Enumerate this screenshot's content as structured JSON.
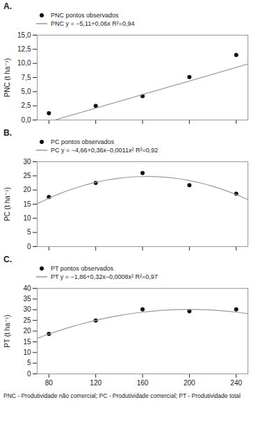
{
  "chart_data": [
    {
      "type": "scatter",
      "title": "A.",
      "ylabel": "PNC (t ha⁻¹)",
      "xlim": [
        70,
        250
      ],
      "xticks": [
        80,
        120,
        160,
        200,
        240
      ],
      "ylim": [
        0,
        15
      ],
      "yticks": [
        {
          "value": 0.0,
          "label": "0,0"
        },
        {
          "value": 2.5,
          "label": "2,5"
        },
        {
          "value": 5.0,
          "label": "5,0"
        },
        {
          "value": 7.5,
          "label": "7,5"
        },
        {
          "value": 10.0,
          "label": "10,0"
        },
        {
          "value": 12.5,
          "label": "12,5"
        },
        {
          "value": 15.0,
          "label": "15,0"
        }
      ],
      "tick_labels": "y",
      "grid": false,
      "legend": "top",
      "series": [
        {
          "name": "PNC  pontos observados",
          "type": "scatter",
          "color": "#111111",
          "x": [
            80,
            120,
            160,
            200,
            240
          ],
          "values": [
            1.2,
            2.5,
            4.2,
            7.6,
            11.5
          ]
        },
        {
          "name": "PNC  y = −5,11+0,06x  R²=0,94",
          "type": "line",
          "color": "#999999",
          "x": [
            86,
            250
          ],
          "values": [
            0.05,
            9.89
          ]
        }
      ]
    },
    {
      "type": "scatter",
      "title": "B.",
      "ylabel": "PC (t ha⁻¹)",
      "xlim": [
        70,
        250
      ],
      "xticks": [
        80,
        120,
        160,
        200,
        240
      ],
      "ylim": [
        0,
        30
      ],
      "yticks": [
        0,
        5,
        10,
        15,
        20,
        25,
        30
      ],
      "tick_labels": "y",
      "grid": false,
      "legend": "top",
      "series": [
        {
          "name": "PC  pontos observados",
          "type": "scatter",
          "color": "#111111",
          "x": [
            80,
            120,
            160,
            200,
            240
          ],
          "values": [
            17.5,
            22.5,
            26.0,
            21.7,
            18.7
          ]
        },
        {
          "name": "PC  y = −4,66+0,36x−0,0011x²  R²=0,92",
          "type": "line",
          "color": "#999999",
          "x": [
            70,
            80,
            90,
            100,
            110,
            120,
            130,
            140,
            150,
            160,
            170,
            180,
            190,
            200,
            210,
            220,
            230,
            240,
            250
          ],
          "values": [
            15.15,
            17.1,
            18.83,
            20.34,
            21.63,
            22.7,
            23.55,
            24.18,
            24.59,
            24.78,
            24.75,
            24.5,
            24.03,
            23.34,
            22.43,
            21.3,
            19.95,
            18.38,
            16.59
          ]
        }
      ]
    },
    {
      "type": "scatter",
      "title": "C.",
      "ylabel": "PT (t ha⁻¹)",
      "xlim": [
        70,
        250
      ],
      "xticks": [
        80,
        120,
        160,
        200,
        240
      ],
      "ylim": [
        0,
        40
      ],
      "yticks": [
        0,
        5,
        10,
        15,
        20,
        25,
        30,
        35,
        40
      ],
      "grid": false,
      "legend": "top",
      "caption": "PNC - Produtividade não comercial; PC - Produtividade comercial; PT - Produtividade total",
      "series": [
        {
          "name": "PT  pontos observados",
          "type": "scatter",
          "color": "#111111",
          "x": [
            80,
            120,
            160,
            200,
            240
          ],
          "values": [
            18.7,
            25.0,
            30.2,
            29.3,
            30.2
          ]
        },
        {
          "name": "PT  y = −1,86+0,32x−0,0008x²  R²=0,97",
          "type": "line",
          "color": "#999999",
          "x": [
            70,
            80,
            90,
            100,
            110,
            120,
            130,
            140,
            150,
            160,
            170,
            180,
            190,
            200,
            210,
            220,
            230,
            240,
            250
          ],
          "values": [
            16.62,
            18.62,
            20.46,
            22.14,
            23.66,
            25.02,
            26.22,
            27.26,
            28.14,
            28.86,
            29.42,
            29.82,
            30.06,
            30.14,
            30.06,
            29.82,
            29.42,
            28.86,
            28.14
          ]
        }
      ]
    }
  ]
}
